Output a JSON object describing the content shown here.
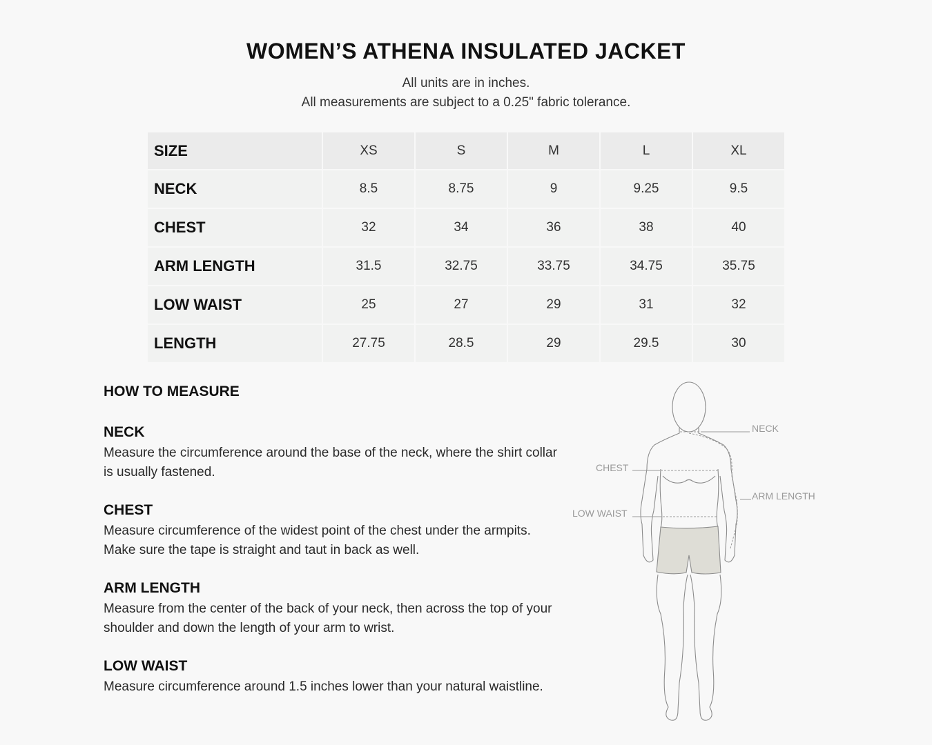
{
  "title": "WOMEN’S ATHENA INSULATED JACKET",
  "subtitle_units": "All units are in inches.",
  "subtitle_tolerance": "All measurements are subject to a 0.25\" fabric tolerance.",
  "size_table": {
    "header": {
      "label": "SIZE",
      "sizes": [
        "XS",
        "S",
        "M",
        "L",
        "XL"
      ]
    },
    "rows": [
      {
        "label": "NECK",
        "values": [
          "8.5",
          "8.75",
          "9",
          "9.25",
          "9.5"
        ]
      },
      {
        "label": "CHEST",
        "values": [
          "32",
          "34",
          "36",
          "38",
          "40"
        ]
      },
      {
        "label": "ARM LENGTH",
        "values": [
          "31.5",
          "32.75",
          "33.75",
          "34.75",
          "35.75"
        ]
      },
      {
        "label": "LOW WAIST",
        "values": [
          "25",
          "27",
          "29",
          "31",
          "32"
        ]
      },
      {
        "label": "LENGTH",
        "values": [
          "27.75",
          "28.5",
          "29",
          "29.5",
          "30"
        ]
      }
    ]
  },
  "how_to_measure": {
    "heading": "HOW TO MEASURE",
    "sections": [
      {
        "title": "NECK",
        "text": "Measure the circumference around the base of the neck, where the shirt collar is usually fastened."
      },
      {
        "title": "CHEST",
        "text": "Measure circumference of the widest point of the chest under the armpits. Make sure the tape is straight and taut in back as well."
      },
      {
        "title": "ARM LENGTH",
        "text": "Measure from the center of the back of your neck, then across the top of your shoulder and down the length of your arm to wrist."
      },
      {
        "title": "LOW WAIST",
        "text": "Measure circumference around 1.5 inches lower than your natural waistline."
      }
    ]
  },
  "figure": {
    "labels": {
      "neck": "NECK",
      "chest": "CHEST",
      "arm_length": "ARM LENGTH",
      "low_waist": "LOW WAIST"
    },
    "shorts_color": "#deddd6"
  }
}
